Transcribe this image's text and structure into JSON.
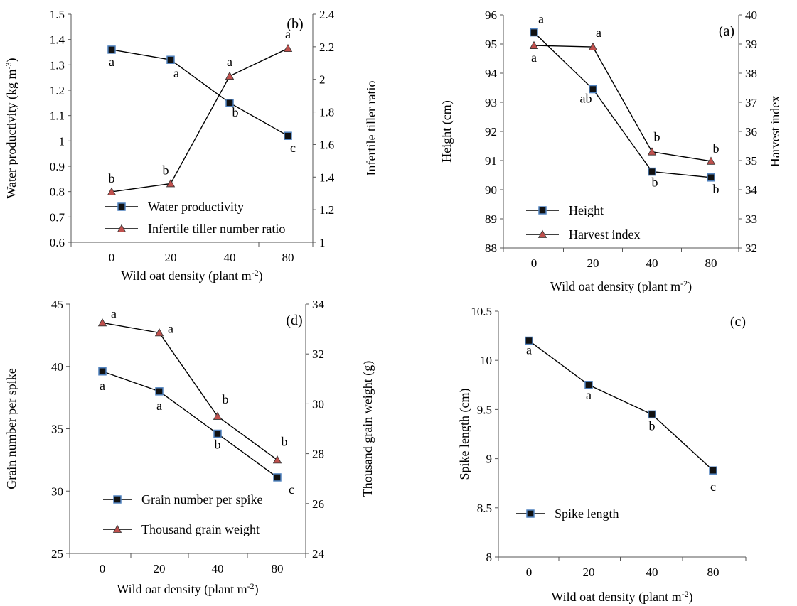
{
  "chart_data": [
    {
      "panel": "(b)",
      "type": "line",
      "categories": [
        "0",
        "20",
        "40",
        "80"
      ],
      "xlabel": "Wild oat density (plant m",
      "xlabel_sup": "-2",
      "xlabel_end": ")",
      "ylabel_left": "Water productivity (kg m",
      "ylabel_left_sup": "-3",
      "ylabel_left_end": ")",
      "ylabel_right": "Infertile tiller ratio",
      "ylim_left": [
        0.6,
        1.5
      ],
      "yticks_left": [
        "0.6",
        "0.7",
        "0.8",
        "0.9",
        "1",
        "1.1",
        "1.2",
        "1.3",
        "1.4",
        "1.5"
      ],
      "ylim_right": [
        1,
        2.4
      ],
      "yticks_right": [
        "1",
        "1.2",
        "1.4",
        "1.6",
        "1.8",
        "2",
        "2.2",
        "2.4"
      ],
      "series": [
        {
          "name": "Water productivity",
          "axis": "left",
          "marker": "square",
          "values": [
            1.36,
            1.32,
            1.15,
            1.02
          ],
          "letters": [
            "a",
            "a",
            "b",
            "c"
          ]
        },
        {
          "name": "Infertile tiller number ratio",
          "axis": "right",
          "marker": "triangle",
          "values": [
            1.31,
            1.36,
            2.02,
            2.19
          ],
          "letters": [
            "b",
            "b",
            "a",
            "a"
          ]
        }
      ],
      "legend": "bottom-left",
      "grid": false
    },
    {
      "panel": "(a)",
      "type": "line",
      "categories": [
        "0",
        "20",
        "40",
        "80"
      ],
      "xlabel": "Wild oat density (plant m",
      "xlabel_sup": "-2",
      "xlabel_end": ")",
      "ylabel_left": "Height (cm)",
      "ylabel_right": "Harvest index",
      "ylim_left": [
        88,
        96
      ],
      "yticks_left": [
        "88",
        "89",
        "90",
        "91",
        "92",
        "93",
        "94",
        "95",
        "96"
      ],
      "ylim_right": [
        32,
        40
      ],
      "yticks_right": [
        "32",
        "33",
        "34",
        "35",
        "36",
        "37",
        "38",
        "39",
        "40"
      ],
      "series": [
        {
          "name": "Height",
          "axis": "left",
          "marker": "square",
          "values": [
            95.4,
            93.45,
            90.62,
            90.42
          ],
          "letters": [
            "a",
            "ab",
            "b",
            "b"
          ]
        },
        {
          "name": "Harvest index",
          "axis": "right",
          "marker": "triangle",
          "values": [
            38.95,
            38.9,
            35.3,
            34.98
          ],
          "letters": [
            "a",
            "a",
            "b",
            "b"
          ]
        }
      ],
      "legend": "bottom-left",
      "grid": false
    },
    {
      "panel": "(d)",
      "type": "line",
      "categories": [
        "0",
        "20",
        "40",
        "80"
      ],
      "xlabel": "Wild oat density (plant m",
      "xlabel_sup": "-2",
      "xlabel_end": ")",
      "ylabel_left": "Grain number per spike",
      "ylabel_right": "Thousand grain weight (g)",
      "ylim_left": [
        25,
        45
      ],
      "yticks_left": [
        "25",
        "30",
        "35",
        "40",
        "45"
      ],
      "ylim_right": [
        24,
        34
      ],
      "yticks_right": [
        "24",
        "26",
        "28",
        "30",
        "32",
        "34"
      ],
      "series": [
        {
          "name": "Grain number per spike",
          "axis": "left",
          "marker": "square",
          "values": [
            39.6,
            38.0,
            34.6,
            31.1
          ],
          "letters": [
            "a",
            "a",
            "b",
            "c"
          ]
        },
        {
          "name": "Thousand grain weight",
          "axis": "right",
          "marker": "triangle",
          "values": [
            33.25,
            32.85,
            29.5,
            27.75
          ],
          "letters": [
            "a",
            "a",
            "b",
            "b"
          ]
        }
      ],
      "legend": "bottom-left",
      "grid": false
    },
    {
      "panel": "(c)",
      "type": "line",
      "categories": [
        "0",
        "20",
        "40",
        "80"
      ],
      "xlabel": "Wild oat density (plant m",
      "xlabel_sup": "-2",
      "xlabel_end": ")",
      "ylabel_left": "Spike  length (cm)",
      "ylim_left": [
        8,
        10.5
      ],
      "yticks_left": [
        "8",
        "8.5",
        "9",
        "9.5",
        "10",
        "10.5"
      ],
      "series": [
        {
          "name": "Spike  length",
          "axis": "left",
          "marker": "square",
          "values": [
            10.2,
            9.75,
            9.45,
            8.88
          ],
          "letters": [
            "a",
            "a",
            "b",
            "c"
          ]
        }
      ],
      "legend": "bottom-left",
      "grid": false
    }
  ]
}
